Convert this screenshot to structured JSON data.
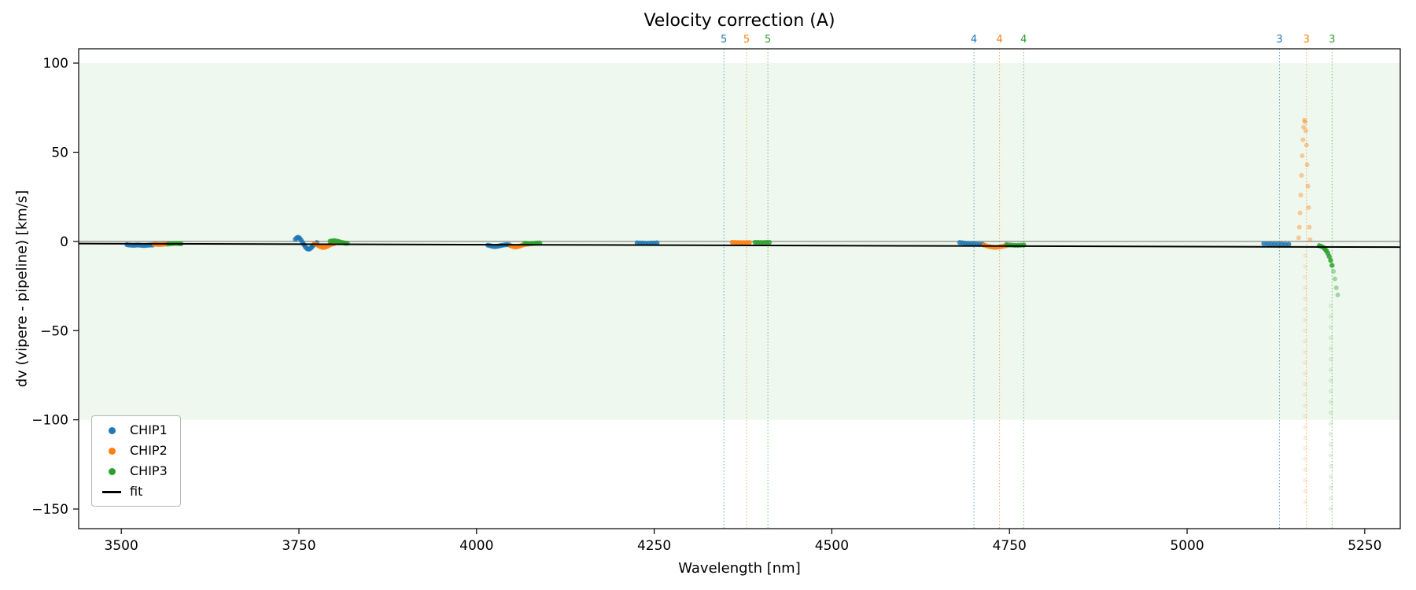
{
  "chart_data": {
    "type": "scatter",
    "title": "Velocity correction (A)",
    "xlabel": "Wavelength [nm]",
    "ylabel": "dv (vipere - pipeline) [km/s]",
    "xlim": [
      3440,
      5300
    ],
    "ylim": [
      -161,
      108
    ],
    "grid": false,
    "legend_position": "lower left",
    "xticks": [
      {
        "v": 3500,
        "label": "3500"
      },
      {
        "v": 3750,
        "label": "3750"
      },
      {
        "v": 4000,
        "label": "4000"
      },
      {
        "v": 4250,
        "label": "4250"
      },
      {
        "v": 4500,
        "label": "4500"
      },
      {
        "v": 4750,
        "label": "4750"
      },
      {
        "v": 5000,
        "label": "5000"
      },
      {
        "v": 5250,
        "label": "5250"
      }
    ],
    "yticks": [
      {
        "v": -150,
        "label": "−150"
      },
      {
        "v": -100,
        "label": "−100"
      },
      {
        "v": -50,
        "label": "−50"
      },
      {
        "v": 0,
        "label": "0"
      },
      {
        "v": 50,
        "label": "50"
      },
      {
        "v": 100,
        "label": "100"
      }
    ],
    "band": {
      "y0": -100,
      "y1": 100,
      "color": "#2ca02c",
      "opacity": 0.08
    },
    "zero_line": {
      "y": 0,
      "color": "#444444",
      "width": 0.8
    },
    "fit": {
      "label": "fit",
      "color": "#000000",
      "width": 2,
      "x": [
        3440,
        5300
      ],
      "y": [
        -1.2,
        -3.2
      ]
    },
    "vlines": [
      {
        "x": 4348,
        "label": "5",
        "color": "#1f77b4"
      },
      {
        "x": 4380,
        "label": "5",
        "color": "#ff7f0e"
      },
      {
        "x": 4410,
        "label": "5",
        "color": "#2ca02c"
      },
      {
        "x": 4700,
        "label": "4",
        "color": "#1f77b4"
      },
      {
        "x": 4736,
        "label": "4",
        "color": "#ff7f0e"
      },
      {
        "x": 4770,
        "label": "4",
        "color": "#2ca02c"
      },
      {
        "x": 5130,
        "label": "3",
        "color": "#1f77b4"
      },
      {
        "x": 5168,
        "label": "3",
        "color": "#ff7f0e"
      },
      {
        "x": 5204,
        "label": "3",
        "color": "#2ca02c"
      }
    ],
    "series": [
      {
        "name": "CHIP1",
        "color": "#1f77b4",
        "points": [
          [
            3508,
            -1.8
          ],
          [
            3511,
            -2.0
          ],
          [
            3514,
            -2.1
          ],
          [
            3517,
            -2.2
          ],
          [
            3520,
            -2.1
          ],
          [
            3523,
            -2.0
          ],
          [
            3526,
            -2.1
          ],
          [
            3529,
            -2.2
          ],
          [
            3532,
            -2.3
          ],
          [
            3535,
            -2.2
          ],
          [
            3538,
            -2.1
          ],
          [
            3541,
            -2.0
          ],
          [
            3544,
            -2.0
          ],
          [
            3745,
            1.2
          ],
          [
            3747,
            2.0
          ],
          [
            3749,
            2.3
          ],
          [
            3751,
            1.8
          ],
          [
            3753,
            0.8
          ],
          [
            3755,
            -0.5
          ],
          [
            3757,
            -1.8
          ],
          [
            3759,
            -3.0
          ],
          [
            3761,
            -3.9
          ],
          [
            3763,
            -4.3
          ],
          [
            3765,
            -4.2
          ],
          [
            3767,
            -3.6
          ],
          [
            3769,
            -2.8
          ],
          [
            3771,
            -1.9
          ],
          [
            3773,
            -1.1
          ],
          [
            3775,
            -0.6
          ],
          [
            4016,
            -2.1
          ],
          [
            4019,
            -2.4
          ],
          [
            4022,
            -2.7
          ],
          [
            4025,
            -2.9
          ],
          [
            4028,
            -2.8
          ],
          [
            4031,
            -2.6
          ],
          [
            4034,
            -2.3
          ],
          [
            4037,
            -2.1
          ],
          [
            4040,
            -1.9
          ],
          [
            4043,
            -1.8
          ],
          [
            4046,
            -1.9
          ],
          [
            4226,
            -0.8
          ],
          [
            4230,
            -0.9
          ],
          [
            4234,
            -0.9
          ],
          [
            4238,
            -1.0
          ],
          [
            4242,
            -1.0
          ],
          [
            4246,
            -0.9
          ],
          [
            4250,
            -0.9
          ],
          [
            4254,
            -0.8
          ],
          [
            4680,
            -0.6
          ],
          [
            4684,
            -0.8
          ],
          [
            4688,
            -1.0
          ],
          [
            4692,
            -1.1
          ],
          [
            4696,
            -1.3
          ],
          [
            4700,
            -1.4
          ],
          [
            4704,
            -1.5
          ],
          [
            4708,
            -1.6
          ],
          [
            4712,
            -1.6
          ],
          [
            5108,
            -1.2
          ],
          [
            5113,
            -1.3
          ],
          [
            5118,
            -1.4
          ],
          [
            5123,
            -1.4
          ],
          [
            5128,
            -1.5
          ],
          [
            5133,
            -1.5
          ],
          [
            5138,
            -1.6
          ],
          [
            5143,
            -1.6
          ]
        ]
      },
      {
        "name": "CHIP2",
        "color": "#ff7f0e",
        "points": [
          [
            3546,
            -1.5
          ],
          [
            3549,
            -1.6
          ],
          [
            3552,
            -1.7
          ],
          [
            3555,
            -1.7
          ],
          [
            3558,
            -1.6
          ],
          [
            3561,
            -1.5
          ],
          [
            3564,
            -1.4
          ],
          [
            3772,
            -1.2
          ],
          [
            3775,
            -1.8
          ],
          [
            3778,
            -2.5
          ],
          [
            3781,
            -3.1
          ],
          [
            3784,
            -3.4
          ],
          [
            3787,
            -3.2
          ],
          [
            3790,
            -2.7
          ],
          [
            3793,
            -2.1
          ],
          [
            3796,
            -1.6
          ],
          [
            3799,
            -1.3
          ],
          [
            4048,
            -2.4
          ],
          [
            4051,
            -2.8
          ],
          [
            4054,
            -3.1
          ],
          [
            4057,
            -3.0
          ],
          [
            4060,
            -2.7
          ],
          [
            4063,
            -2.3
          ],
          [
            4066,
            -1.9
          ],
          [
            4069,
            -1.6
          ],
          [
            4072,
            -1.5
          ],
          [
            4360,
            -0.5
          ],
          [
            4364,
            -0.6
          ],
          [
            4368,
            -0.6
          ],
          [
            4372,
            -0.7
          ],
          [
            4376,
            -0.7
          ],
          [
            4380,
            -0.6
          ],
          [
            4384,
            -0.6
          ],
          [
            4714,
            -2.0
          ],
          [
            4718,
            -2.5
          ],
          [
            4722,
            -2.9
          ],
          [
            4726,
            -3.2
          ],
          [
            4730,
            -3.3
          ],
          [
            4734,
            -3.2
          ],
          [
            4738,
            -2.9
          ],
          [
            4742,
            -2.6
          ],
          [
            4746,
            -2.3
          ]
        ],
        "soft_points": [
          [
            5157,
            2
          ],
          [
            5158,
            8
          ],
          [
            5159,
            16
          ],
          [
            5160,
            26
          ],
          [
            5161,
            37
          ],
          [
            5162,
            48
          ],
          [
            5163,
            57
          ],
          [
            5164,
            64
          ],
          [
            5165,
            68
          ],
          [
            5166,
            67
          ],
          [
            5167,
            62
          ],
          [
            5168,
            54
          ],
          [
            5169,
            43
          ],
          [
            5170,
            31
          ],
          [
            5171,
            19
          ],
          [
            5172,
            8
          ],
          [
            5173,
            1
          ]
        ],
        "faint_points": [
          [
            5166,
            -8
          ],
          [
            5166,
            -14
          ],
          [
            5166,
            -20
          ],
          [
            5166,
            -26
          ],
          [
            5166,
            -32
          ],
          [
            5166,
            -38
          ],
          [
            5166,
            -44
          ],
          [
            5166,
            -50
          ],
          [
            5166,
            -56
          ],
          [
            5166,
            -62
          ],
          [
            5166,
            -68
          ],
          [
            5166,
            -74
          ],
          [
            5166,
            -80
          ],
          [
            5166,
            -86
          ],
          [
            5166,
            -92
          ],
          [
            5166,
            -98
          ],
          [
            5166,
            -104
          ],
          [
            5166,
            -110
          ],
          [
            5166,
            -116
          ],
          [
            5166,
            -122
          ],
          [
            5166,
            -128
          ],
          [
            5166,
            -134
          ],
          [
            5166,
            -140
          ],
          [
            5166,
            -146
          ]
        ]
      },
      {
        "name": "CHIP3",
        "color": "#2ca02c",
        "points": [
          [
            3566,
            -1.4
          ],
          [
            3569,
            -1.3
          ],
          [
            3572,
            -1.2
          ],
          [
            3575,
            -1.1
          ],
          [
            3578,
            -1.1
          ],
          [
            3581,
            -1.2
          ],
          [
            3584,
            -1.3
          ],
          [
            3794,
            0.1
          ],
          [
            3797,
            0.3
          ],
          [
            3800,
            0.4
          ],
          [
            3803,
            0.2
          ],
          [
            3806,
            -0.1
          ],
          [
            3809,
            -0.4
          ],
          [
            3812,
            -0.7
          ],
          [
            3815,
            -0.9
          ],
          [
            3818,
            -1.0
          ],
          [
            4068,
            -1.0
          ],
          [
            4071,
            -1.1
          ],
          [
            4074,
            -1.2
          ],
          [
            4077,
            -1.2
          ],
          [
            4080,
            -1.1
          ],
          [
            4083,
            -1.0
          ],
          [
            4086,
            -0.9
          ],
          [
            4089,
            -0.9
          ],
          [
            4392,
            -0.5
          ],
          [
            4396,
            -0.5
          ],
          [
            4400,
            -0.6
          ],
          [
            4404,
            -0.6
          ],
          [
            4408,
            -0.5
          ],
          [
            4412,
            -0.5
          ],
          [
            4746,
            -1.8
          ],
          [
            4750,
            -2.0
          ],
          [
            4754,
            -2.1
          ],
          [
            4758,
            -2.2
          ],
          [
            4762,
            -2.2
          ],
          [
            4766,
            -2.1
          ],
          [
            4770,
            -2.0
          ],
          [
            5186,
            -2.4
          ],
          [
            5189,
            -2.8
          ],
          [
            5192,
            -3.4
          ],
          [
            5194,
            -4.2
          ],
          [
            5196,
            -5.2
          ],
          [
            5198,
            -6.6
          ],
          [
            5200,
            -8.4
          ],
          [
            5202,
            -10.6
          ],
          [
            5204,
            -13.4
          ]
        ],
        "soft_points": [
          [
            5206,
            -16.8
          ],
          [
            5208,
            -21.0
          ],
          [
            5210,
            -26.0
          ],
          [
            5212,
            -30.0
          ]
        ],
        "faint_points": [
          [
            5202,
            -36
          ],
          [
            5202,
            -42
          ],
          [
            5202,
            -48
          ],
          [
            5202,
            -54
          ],
          [
            5202,
            -60
          ],
          [
            5202,
            -66
          ],
          [
            5202,
            -72
          ],
          [
            5202,
            -78
          ],
          [
            5202,
            -84
          ],
          [
            5202,
            -90
          ],
          [
            5202,
            -96
          ],
          [
            5202,
            -102
          ],
          [
            5202,
            -108
          ],
          [
            5202,
            -114
          ],
          [
            5202,
            -120
          ],
          [
            5202,
            -126
          ],
          [
            5202,
            -132
          ],
          [
            5202,
            -138
          ],
          [
            5202,
            -144
          ],
          [
            5202,
            -150
          ]
        ]
      }
    ],
    "legend": [
      {
        "label": "CHIP1",
        "color": "#1f77b4",
        "marker": "dot"
      },
      {
        "label": "CHIP2",
        "color": "#ff7f0e",
        "marker": "dot"
      },
      {
        "label": "CHIP3",
        "color": "#2ca02c",
        "marker": "dot"
      },
      {
        "label": "fit",
        "color": "#000000",
        "marker": "line"
      }
    ]
  }
}
